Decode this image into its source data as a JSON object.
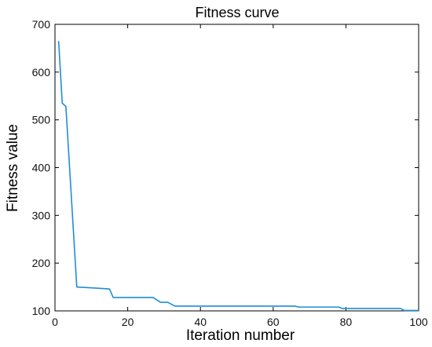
{
  "chart_data": {
    "type": "line",
    "title": "Fitness curve",
    "xlabel": "Iteration number",
    "ylabel": "Fitness value",
    "xlim": [
      0,
      100
    ],
    "ylim": [
      100,
      700
    ],
    "xticks": [
      0,
      20,
      40,
      60,
      80,
      100
    ],
    "yticks": [
      100,
      200,
      300,
      400,
      500,
      600,
      700
    ],
    "grid": false,
    "series": [
      {
        "color": "#1f8dd6",
        "x": [
          1,
          2,
          3,
          6,
          15,
          16,
          27,
          29,
          31,
          33,
          66,
          67,
          78,
          79,
          95,
          96,
          100
        ],
        "y": [
          665,
          535,
          528,
          150,
          146,
          128,
          128,
          118,
          118,
          110,
          110,
          108,
          108,
          105,
          105,
          101,
          101
        ]
      }
    ]
  }
}
